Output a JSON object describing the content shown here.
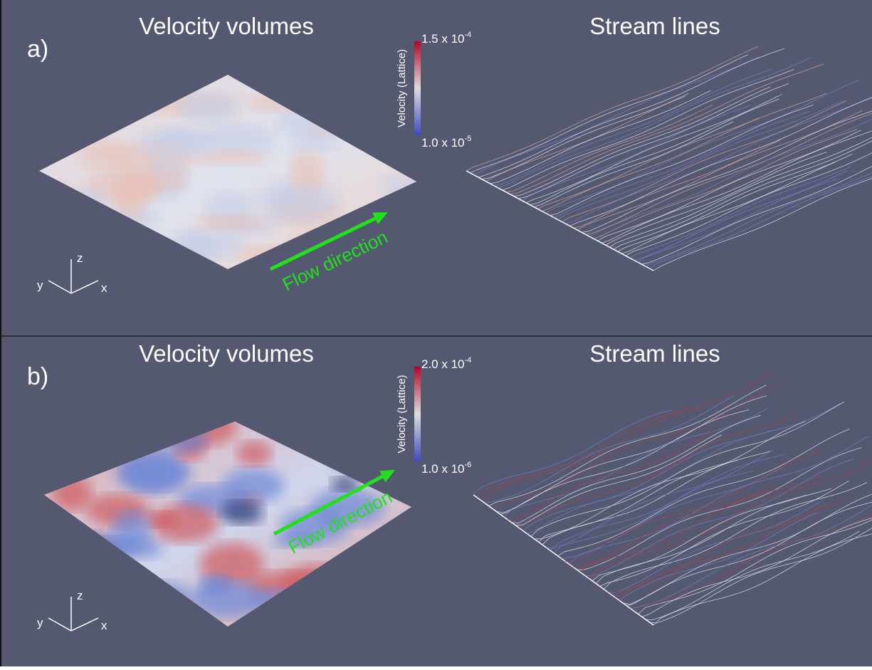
{
  "panels": [
    {
      "label": "a)",
      "left_title": "Velocity volumes",
      "right_title": "Stream lines",
      "colorbar": {
        "title": "Velocity (Lattice)",
        "max": {
          "mantissa": "1.5 x 10",
          "exponent": "-4"
        },
        "min": {
          "mantissa": "1.0 x 10",
          "exponent": "-5"
        }
      },
      "axes": {
        "x": "x",
        "y": "y",
        "z": "z"
      },
      "flow_label": "Flow direction"
    },
    {
      "label": "b)",
      "left_title": "Velocity volumes",
      "right_title": "Stream lines",
      "colorbar": {
        "title": "Velocity (Lattice)",
        "max": {
          "mantissa": "2.0 x 10",
          "exponent": "-4"
        },
        "min": {
          "mantissa": "1.0 x 10",
          "exponent": "-6"
        }
      },
      "axes": {
        "x": "x",
        "y": "y",
        "z": "z"
      },
      "flow_label": "Flow direction"
    }
  ]
}
